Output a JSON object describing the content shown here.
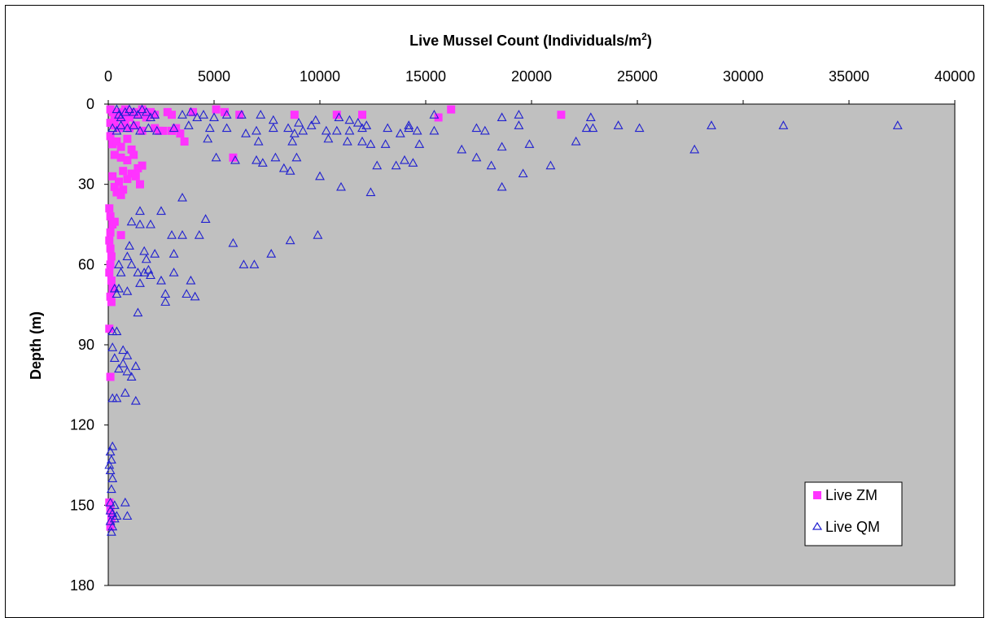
{
  "chart_data": {
    "type": "scatter",
    "title": "",
    "xlabel": {
      "main": "Live Mussel Count (Individuals/m",
      "sup": "2",
      "tail": ")"
    },
    "ylabel": "Depth (m)",
    "xlim": [
      0,
      40000
    ],
    "ylim": [
      0,
      180
    ],
    "y_inverted": true,
    "x_ticks": [
      0,
      5000,
      10000,
      15000,
      20000,
      25000,
      30000,
      35000,
      40000
    ],
    "y_ticks": [
      0,
      30,
      60,
      90,
      120,
      150,
      180
    ],
    "x_axis_position": "top",
    "grid": false,
    "plot_background": "#c0c0c0",
    "legend": {
      "position": "bottom-right"
    },
    "series": [
      {
        "name": "Live ZM",
        "marker": "square",
        "color": "#ff33ff",
        "points": [
          [
            100,
            2
          ],
          [
            200,
            3
          ],
          [
            300,
            4
          ],
          [
            400,
            5
          ],
          [
            500,
            3
          ],
          [
            600,
            4
          ],
          [
            700,
            5
          ],
          [
            800,
            2
          ],
          [
            900,
            4
          ],
          [
            1000,
            5
          ],
          [
            1200,
            3
          ],
          [
            1400,
            4
          ],
          [
            1600,
            2
          ],
          [
            1800,
            5
          ],
          [
            2000,
            3
          ],
          [
            2200,
            4
          ],
          [
            2800,
            3
          ],
          [
            3000,
            4
          ],
          [
            4000,
            3
          ],
          [
            5100,
            2
          ],
          [
            5500,
            3
          ],
          [
            6200,
            4
          ],
          [
            8800,
            4
          ],
          [
            10800,
            4
          ],
          [
            12000,
            4
          ],
          [
            15600,
            5
          ],
          [
            16200,
            2
          ],
          [
            21400,
            4
          ],
          [
            100,
            7
          ],
          [
            300,
            8
          ],
          [
            500,
            9
          ],
          [
            800,
            8
          ],
          [
            1000,
            9
          ],
          [
            1300,
            8
          ],
          [
            1600,
            10
          ],
          [
            2200,
            9
          ],
          [
            2400,
            10
          ],
          [
            2600,
            10
          ],
          [
            3000,
            10
          ],
          [
            3200,
            9
          ],
          [
            3400,
            11
          ],
          [
            3600,
            14
          ],
          [
            5900,
            20
          ],
          [
            100,
            12
          ],
          [
            200,
            15
          ],
          [
            400,
            14
          ],
          [
            600,
            16
          ],
          [
            900,
            13
          ],
          [
            1100,
            17
          ],
          [
            300,
            19
          ],
          [
            600,
            20
          ],
          [
            900,
            21
          ],
          [
            1200,
            19
          ],
          [
            1400,
            24
          ],
          [
            1600,
            23
          ],
          [
            700,
            25
          ],
          [
            1100,
            26
          ],
          [
            200,
            27
          ],
          [
            500,
            29
          ],
          [
            900,
            28
          ],
          [
            1300,
            27
          ],
          [
            1500,
            30
          ],
          [
            300,
            31
          ],
          [
            700,
            32
          ],
          [
            400,
            33
          ],
          [
            600,
            34
          ],
          [
            50,
            39
          ],
          [
            100,
            42
          ],
          [
            200,
            45
          ],
          [
            300,
            44
          ],
          [
            100,
            48
          ],
          [
            600,
            49
          ],
          [
            50,
            51
          ],
          [
            100,
            54
          ],
          [
            150,
            57
          ],
          [
            100,
            60
          ],
          [
            50,
            63
          ],
          [
            150,
            66
          ],
          [
            200,
            69
          ],
          [
            100,
            72
          ],
          [
            150,
            74
          ],
          [
            50,
            84
          ],
          [
            100,
            102
          ],
          [
            50,
            149
          ],
          [
            100,
            152
          ],
          [
            150,
            155
          ],
          [
            100,
            158
          ]
        ]
      },
      {
        "name": "Live QM",
        "marker": "triangle",
        "color": "#2020d0",
        "points": [
          [
            400,
            2
          ],
          [
            500,
            4
          ],
          [
            600,
            5
          ],
          [
            800,
            3
          ],
          [
            1000,
            2
          ],
          [
            1200,
            3
          ],
          [
            1400,
            4
          ],
          [
            1600,
            2
          ],
          [
            1800,
            3
          ],
          [
            2000,
            5
          ],
          [
            2200,
            4
          ],
          [
            3500,
            4
          ],
          [
            3900,
            3
          ],
          [
            4200,
            5
          ],
          [
            4500,
            4
          ],
          [
            5000,
            5
          ],
          [
            5600,
            4
          ],
          [
            6300,
            4
          ],
          [
            7200,
            4
          ],
          [
            7800,
            6
          ],
          [
            9000,
            7
          ],
          [
            9800,
            6
          ],
          [
            10900,
            5
          ],
          [
            11400,
            6
          ],
          [
            11800,
            7
          ],
          [
            12200,
            8
          ],
          [
            14200,
            8
          ],
          [
            15400,
            4
          ],
          [
            18600,
            5
          ],
          [
            19400,
            4
          ],
          [
            22800,
            5
          ],
          [
            200,
            9
          ],
          [
            400,
            10
          ],
          [
            600,
            8
          ],
          [
            900,
            9
          ],
          [
            1200,
            8
          ],
          [
            1500,
            10
          ],
          [
            1900,
            9
          ],
          [
            2300,
            10
          ],
          [
            3100,
            9
          ],
          [
            3800,
            8
          ],
          [
            4800,
            9
          ],
          [
            5600,
            9
          ],
          [
            6500,
            11
          ],
          [
            7000,
            10
          ],
          [
            7800,
            9
          ],
          [
            8500,
            9
          ],
          [
            8800,
            11
          ],
          [
            9200,
            10
          ],
          [
            9600,
            8
          ],
          [
            10300,
            10
          ],
          [
            10800,
            10
          ],
          [
            11400,
            10
          ],
          [
            12000,
            9
          ],
          [
            13200,
            9
          ],
          [
            13800,
            11
          ],
          [
            14200,
            9
          ],
          [
            14600,
            10
          ],
          [
            15400,
            10
          ],
          [
            17400,
            9
          ],
          [
            17800,
            10
          ],
          [
            19400,
            8
          ],
          [
            22600,
            9
          ],
          [
            22900,
            9
          ],
          [
            24100,
            8
          ],
          [
            25100,
            9
          ],
          [
            28500,
            8
          ],
          [
            31900,
            8
          ],
          [
            37300,
            8
          ],
          [
            4700,
            13
          ],
          [
            7100,
            14
          ],
          [
            8700,
            14
          ],
          [
            10400,
            13
          ],
          [
            11300,
            14
          ],
          [
            12000,
            14
          ],
          [
            12400,
            15
          ],
          [
            13100,
            15
          ],
          [
            14700,
            15
          ],
          [
            16700,
            17
          ],
          [
            18600,
            16
          ],
          [
            19900,
            15
          ],
          [
            22100,
            14
          ],
          [
            27700,
            17
          ],
          [
            5100,
            20
          ],
          [
            6000,
            21
          ],
          [
            7000,
            21
          ],
          [
            7300,
            22
          ],
          [
            7900,
            20
          ],
          [
            8300,
            24
          ],
          [
            8600,
            25
          ],
          [
            8900,
            20
          ],
          [
            10000,
            27
          ],
          [
            11000,
            31
          ],
          [
            12400,
            33
          ],
          [
            12700,
            23
          ],
          [
            13600,
            23
          ],
          [
            14000,
            21
          ],
          [
            14400,
            22
          ],
          [
            17400,
            20
          ],
          [
            18100,
            23
          ],
          [
            19600,
            26
          ],
          [
            20900,
            23
          ],
          [
            18600,
            31
          ],
          [
            3500,
            35
          ],
          [
            1500,
            40
          ],
          [
            2500,
            40
          ],
          [
            4600,
            43
          ],
          [
            1100,
            44
          ],
          [
            1500,
            45
          ],
          [
            2000,
            45
          ],
          [
            3000,
            49
          ],
          [
            3500,
            49
          ],
          [
            4300,
            49
          ],
          [
            5900,
            52
          ],
          [
            8600,
            51
          ],
          [
            9900,
            49
          ],
          [
            1000,
            53
          ],
          [
            1700,
            55
          ],
          [
            900,
            57
          ],
          [
            2200,
            56
          ],
          [
            3100,
            56
          ],
          [
            7700,
            56
          ],
          [
            500,
            60
          ],
          [
            1100,
            60
          ],
          [
            1800,
            58
          ],
          [
            1900,
            62
          ],
          [
            6400,
            60
          ],
          [
            6900,
            60
          ],
          [
            600,
            63
          ],
          [
            1400,
            63
          ],
          [
            2000,
            64
          ],
          [
            1700,
            63
          ],
          [
            3100,
            63
          ],
          [
            3900,
            66
          ],
          [
            2500,
            66
          ],
          [
            1500,
            67
          ],
          [
            300,
            69
          ],
          [
            500,
            69
          ],
          [
            900,
            70
          ],
          [
            400,
            71
          ],
          [
            2700,
            71
          ],
          [
            3700,
            71
          ],
          [
            4100,
            72
          ],
          [
            1400,
            78
          ],
          [
            2700,
            74
          ],
          [
            200,
            85
          ],
          [
            400,
            85
          ],
          [
            200,
            91
          ],
          [
            700,
            92
          ],
          [
            900,
            94
          ],
          [
            300,
            95
          ],
          [
            700,
            97
          ],
          [
            1300,
            98
          ],
          [
            500,
            99
          ],
          [
            900,
            100
          ],
          [
            1100,
            102
          ],
          [
            200,
            110
          ],
          [
            400,
            110
          ],
          [
            800,
            108
          ],
          [
            1300,
            111
          ],
          [
            100,
            130
          ],
          [
            200,
            128
          ],
          [
            150,
            133
          ],
          [
            50,
            135
          ],
          [
            100,
            137
          ],
          [
            200,
            140
          ],
          [
            150,
            144
          ],
          [
            100,
            149
          ],
          [
            300,
            150
          ],
          [
            800,
            149
          ],
          [
            100,
            152
          ],
          [
            200,
            153
          ],
          [
            400,
            154
          ],
          [
            900,
            154
          ],
          [
            300,
            155
          ],
          [
            100,
            156
          ],
          [
            200,
            158
          ],
          [
            150,
            160
          ]
        ]
      }
    ]
  }
}
